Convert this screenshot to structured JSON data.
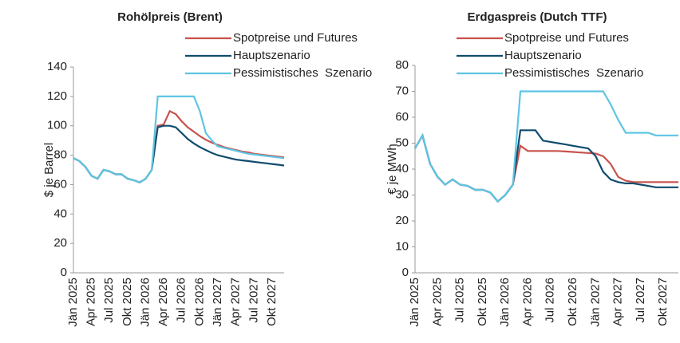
{
  "chart_data": [
    {
      "type": "line",
      "title": "Rohölpreis (Brent)",
      "y_label": "$ je Barrel",
      "categories": [
        "Jän 2025",
        null,
        null,
        "Apr 2025",
        null,
        null,
        "Jul 2025",
        null,
        null,
        "Okt 2025",
        null,
        null,
        "Jän 2026",
        null,
        null,
        "Apr 2026",
        null,
        null,
        "Jul 2026",
        null,
        null,
        "Okt 2026",
        null,
        null,
        "Jän 2027",
        null,
        null,
        "Apr 2027",
        null,
        null,
        "Jul 2027",
        null,
        null,
        "Okt 2027",
        null,
        null
      ],
      "ylim": [
        0,
        140
      ],
      "yticks": [
        0,
        20,
        40,
        60,
        80,
        100,
        120,
        140
      ],
      "grid": false,
      "series": [
        {
          "name": "Spotpreise und Futures",
          "color": "#c8524c",
          "values": [
            78,
            76,
            72,
            66,
            64,
            70,
            69,
            67,
            67,
            64,
            63,
            61.5,
            64,
            70,
            100,
            101,
            110,
            108,
            103,
            99,
            96,
            93,
            90.5,
            88.5,
            87,
            85.5,
            84.5,
            83.5,
            82.5,
            82,
            81,
            80.5,
            80,
            79.5,
            79,
            78.5
          ]
        },
        {
          "name": "Hauptszenario",
          "color": "#0f4c6e",
          "values": [
            78,
            76,
            72,
            66,
            64,
            70,
            69,
            67,
            67,
            64,
            63,
            61.5,
            64,
            70,
            99,
            100,
            100,
            99,
            95,
            91,
            88,
            85.5,
            83.5,
            81.5,
            80,
            79,
            78,
            77,
            76.5,
            76,
            75.5,
            75,
            74.5,
            74,
            73.5,
            73
          ]
        },
        {
          "name": "Pessimistisches  Szenario",
          "color": "#5ec5e2",
          "values": [
            78,
            76,
            72,
            66,
            64,
            70,
            69,
            67,
            67,
            64,
            63,
            61.5,
            64,
            70,
            120,
            120,
            120,
            120,
            120,
            120,
            120,
            110,
            95,
            90,
            86,
            85,
            84,
            83,
            82,
            81,
            80.5,
            80,
            79.5,
            79,
            78.5,
            78
          ]
        }
      ]
    },
    {
      "type": "line",
      "title": "Erdgaspreis (Dutch TTF)",
      "y_label": "€ je MWh",
      "categories": [
        "Jän 2025",
        null,
        null,
        "Apr 2025",
        null,
        null,
        "Jul 2025",
        null,
        null,
        "Okt 2025",
        null,
        null,
        "Jän 2026",
        null,
        null,
        "Apr 2026",
        null,
        null,
        "Jul 2026",
        null,
        null,
        "Okt 2026",
        null,
        null,
        "Jän 2027",
        null,
        null,
        "Apr 2027",
        null,
        null,
        "Jul 2027",
        null,
        null,
        "Okt 2027",
        null,
        null
      ],
      "ylim": [
        0,
        80
      ],
      "yticks": [
        0,
        10,
        20,
        30,
        40,
        50,
        60,
        70,
        80
      ],
      "grid": false,
      "series": [
        {
          "name": "Spotpreise und Futures",
          "color": "#c8524c",
          "values": [
            48,
            53,
            42,
            37,
            34,
            36,
            34,
            33.5,
            32,
            32,
            31,
            27.5,
            30,
            34,
            49,
            47,
            47,
            47,
            47,
            47,
            46.8,
            46.6,
            46.4,
            46.2,
            46,
            45,
            42,
            37,
            35.5,
            35,
            35,
            35,
            35,
            35,
            35,
            35
          ]
        },
        {
          "name": "Hauptszenario",
          "color": "#0f4c6e",
          "values": [
            48,
            53,
            42,
            37,
            34,
            36,
            34,
            33.5,
            32,
            32,
            31,
            27.5,
            30,
            34,
            55,
            55,
            55,
            51,
            50.5,
            50,
            49.5,
            49,
            48.5,
            48,
            45,
            39,
            36,
            35,
            34.5,
            34.5,
            34,
            33.5,
            33,
            33,
            33,
            33
          ]
        },
        {
          "name": "Pessimistisches  Szenario",
          "color": "#5ec5e2",
          "values": [
            48,
            53,
            42,
            37,
            34,
            36,
            34,
            33.5,
            32,
            32,
            31,
            27.5,
            30,
            34,
            70,
            70,
            70,
            70,
            70,
            70,
            70,
            70,
            70,
            70,
            70,
            70,
            65,
            59,
            54,
            54,
            54,
            54,
            53,
            53,
            53,
            53
          ]
        }
      ]
    }
  ]
}
